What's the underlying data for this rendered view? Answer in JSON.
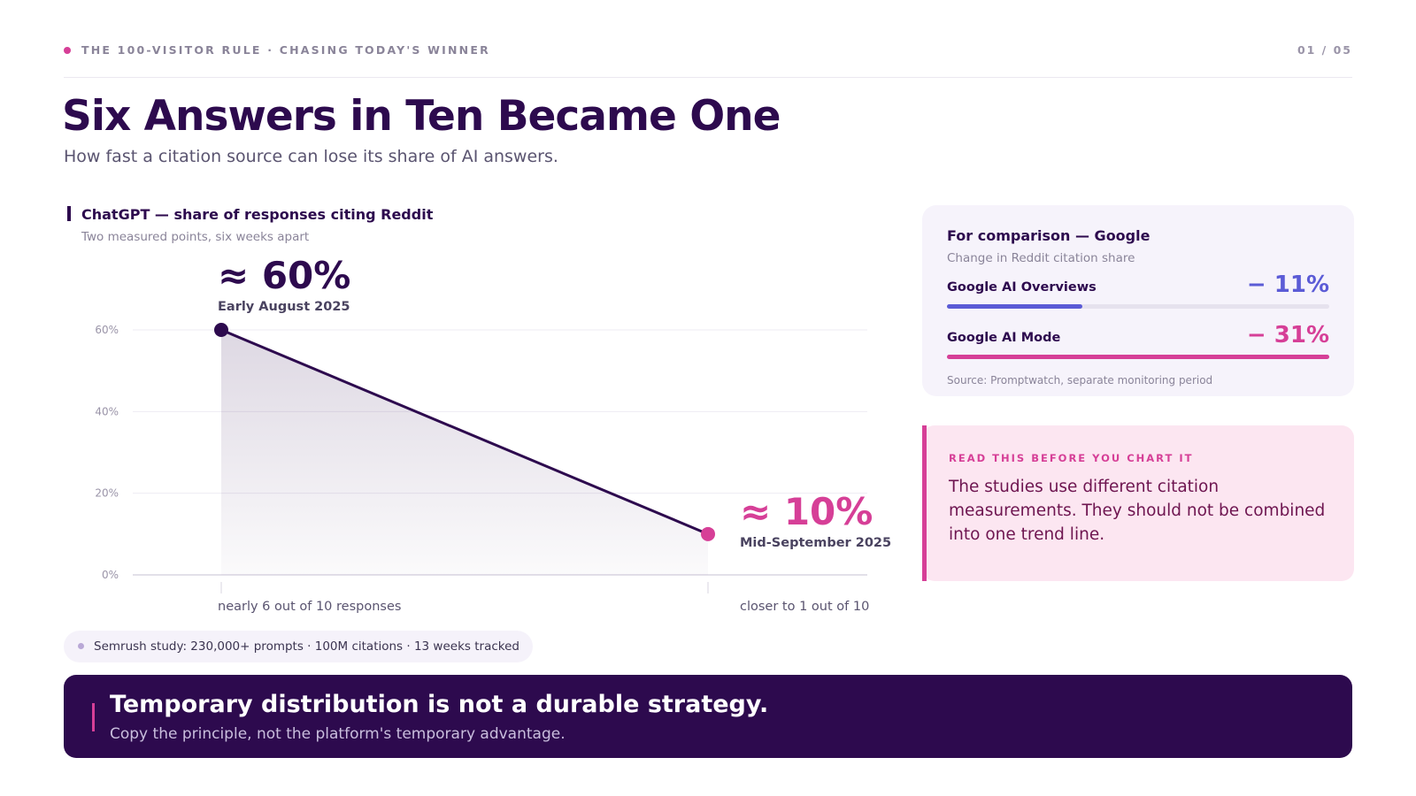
{
  "header": {
    "kicker": "THE 100-VISITOR RULE · CHASING TODAY'S WINNER",
    "page": "01 / 05",
    "title": "Six Answers in Ten Became One",
    "subtitle": "How fast a citation source can lose its share of AI answers."
  },
  "chart_data": {
    "type": "line",
    "title": "ChatGPT — share of responses citing Reddit",
    "subtitle": "Two measured points, six weeks apart",
    "categories": [
      "Early August 2025",
      "Mid-September 2025"
    ],
    "values": [
      60,
      10
    ],
    "value_labels": [
      "≈ 60%",
      "≈ 10%"
    ],
    "point_notes": [
      "nearly 6 out of 10 responses",
      "closer to 1 out of 10"
    ],
    "color": "#2d0a4e",
    "point_colors": [
      "#2d0a4e",
      "#d63f97"
    ],
    "ylim": [
      0,
      60
    ],
    "yticks": [
      {
        "value": 0,
        "label": "0%"
      },
      {
        "value": 20,
        "label": "20%"
      },
      {
        "value": 40,
        "label": "40%"
      },
      {
        "value": 60,
        "label": "60%"
      }
    ],
    "grid": true,
    "note": "Semrush study: 230,000+ prompts · 100M citations · 13 weeks tracked"
  },
  "comparison": {
    "title": "For comparison — Google",
    "subtitle": "Change in Reddit citation share",
    "xlim": [
      0,
      -31
    ],
    "items": [
      {
        "label": "Google AI Overviews",
        "value": -11,
        "value_label": "− 11%",
        "color": "#5b5bd6"
      },
      {
        "label": "Google AI Mode",
        "value": -31,
        "value_label": "− 31%",
        "color": "#d63f97"
      }
    ],
    "source": "Source: Promptwatch, separate monitoring period"
  },
  "callout": {
    "kicker": "READ THIS BEFORE YOU CHART IT",
    "text": "The studies use different citation measurements. They should not be combined into one trend line."
  },
  "footer": {
    "title": "Temporary distribution is not a durable strategy.",
    "text": "Copy the principle, not the platform's temporary advantage."
  }
}
